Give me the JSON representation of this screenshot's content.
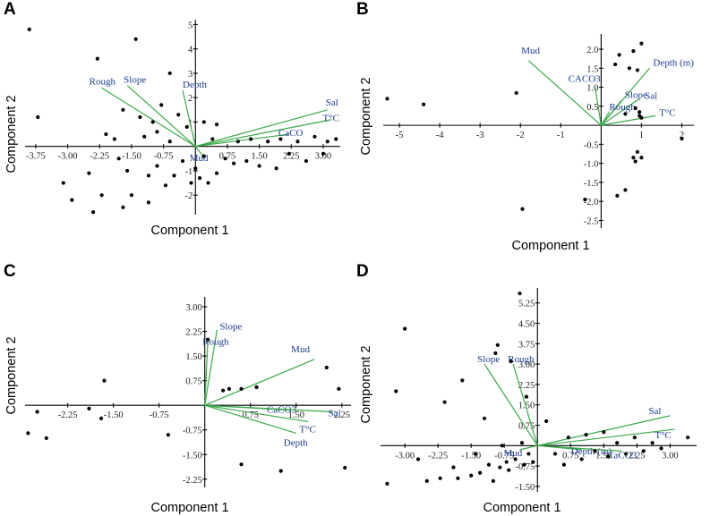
{
  "chart_data": [
    {
      "type": "scatter",
      "panel": "A",
      "xlabel": "Component 1",
      "ylabel": "Component 2",
      "xticks": [
        "-3.75",
        "-3.00",
        "-2.25",
        "-1.50",
        "-0.75",
        "0.75",
        "1.50",
        "2.25",
        "3.00"
      ],
      "yticks": [
        "5",
        "4",
        "3",
        "2",
        "1",
        "-1",
        "-2"
      ],
      "xlim": [
        -4.0,
        3.4
      ],
      "ylim": [
        -2.8,
        5.2
      ],
      "vectors": [
        {
          "label": "Rough",
          "x": -2.2,
          "y": 2.4
        },
        {
          "label": "Slope",
          "x": -1.6,
          "y": 2.5
        },
        {
          "label": "Depth",
          "x": -0.3,
          "y": 2.3
        },
        {
          "label": "Sal",
          "x": 3.1,
          "y": 1.5
        },
        {
          "label": "T°C",
          "x": 3.2,
          "y": 1.1
        },
        {
          "label": "CaCO",
          "x": 2.2,
          "y": 0.5
        },
        {
          "label": "Mud",
          "x": 0.2,
          "y": -0.45
        }
      ],
      "points": [
        [
          -3.9,
          4.8
        ],
        [
          -3.7,
          1.2
        ],
        [
          -3.1,
          -1.5
        ],
        [
          -2.9,
          -2.2
        ],
        [
          -2.5,
          -1.1
        ],
        [
          -2.4,
          -2.7
        ],
        [
          -2.3,
          3.6
        ],
        [
          -2.2,
          -2.0
        ],
        [
          -2.1,
          0.5
        ],
        [
          -1.9,
          0.3
        ],
        [
          -1.8,
          -0.5
        ],
        [
          -1.7,
          -2.5
        ],
        [
          -1.7,
          1.5
        ],
        [
          -1.6,
          -1.0
        ],
        [
          -1.5,
          -2.0
        ],
        [
          -1.4,
          4.4
        ],
        [
          -1.3,
          1.2
        ],
        [
          -1.2,
          0.4
        ],
        [
          -1.1,
          -1.2
        ],
        [
          -1.1,
          -2.3
        ],
        [
          -1.0,
          1.0
        ],
        [
          -0.9,
          0.6
        ],
        [
          -0.9,
          -0.8
        ],
        [
          -0.8,
          1.7
        ],
        [
          -0.7,
          -1.6
        ],
        [
          -0.6,
          3.0
        ],
        [
          -0.6,
          0.2
        ],
        [
          -0.5,
          -1.2
        ],
        [
          -0.4,
          1.3
        ],
        [
          -0.3,
          -0.6
        ],
        [
          -0.2,
          0.8
        ],
        [
          -0.1,
          -1.5
        ],
        [
          0.0,
          -0.9
        ],
        [
          0.1,
          -1.3
        ],
        [
          0.2,
          1.0
        ],
        [
          0.2,
          -0.4
        ],
        [
          0.3,
          -1.5
        ],
        [
          0.4,
          0.3
        ],
        [
          0.5,
          -1.1
        ],
        [
          0.5,
          0.9
        ],
        [
          0.7,
          -0.5
        ],
        [
          0.9,
          -0.7
        ],
        [
          1.0,
          0.2
        ],
        [
          1.2,
          -0.6
        ],
        [
          1.3,
          0.3
        ],
        [
          1.5,
          -0.8
        ],
        [
          1.7,
          0.2
        ],
        [
          1.9,
          -0.9
        ],
        [
          2.0,
          0.3
        ],
        [
          2.2,
          -0.3
        ],
        [
          2.4,
          0.2
        ],
        [
          2.6,
          -0.6
        ],
        [
          2.8,
          0.4
        ],
        [
          3.0,
          -0.3
        ],
        [
          3.1,
          0.2
        ],
        [
          3.3,
          0.3
        ]
      ]
    },
    {
      "type": "scatter",
      "panel": "B",
      "xlabel": "Component 1",
      "ylabel": "Component 2",
      "xticks": [
        "-5",
        "-4",
        "-3",
        "-2",
        "-1",
        "1",
        "2"
      ],
      "yticks": [
        "2.0",
        "1.5",
        "1.0",
        "0.5",
        "-0.5",
        "-1.0",
        "-1.5",
        "-2.0",
        "-2.5"
      ],
      "xlim": [
        -5.4,
        2.3
      ],
      "ylim": [
        -2.7,
        2.4
      ],
      "vectors": [
        {
          "label": "Mud",
          "x": -1.8,
          "y": 1.7
        },
        {
          "label": "CACO3",
          "x": -0.15,
          "y": 1.0
        },
        {
          "label": "Depth (m)",
          "x": 1.2,
          "y": 1.5
        },
        {
          "label": "Slope",
          "x": 0.5,
          "y": 0.65
        },
        {
          "label": "Sal",
          "x": 0.95,
          "y": 0.7
        },
        {
          "label": "Rough",
          "x": 0.2,
          "y": 0.35
        },
        {
          "label": "T°C",
          "x": 1.35,
          "y": 0.25
        }
      ],
      "points": [
        [
          -5.3,
          0.7
        ],
        [
          -4.4,
          0.55
        ],
        [
          -2.1,
          0.85
        ],
        [
          -1.95,
          -2.2
        ],
        [
          0.6,
          -1.7
        ],
        [
          -0.4,
          -1.95
        ],
        [
          0.4,
          -1.85
        ],
        [
          0.45,
          1.85
        ],
        [
          0.7,
          1.5
        ],
        [
          0.8,
          1.95
        ],
        [
          0.9,
          1.45
        ],
        [
          1.0,
          2.15
        ],
        [
          0.35,
          1.6
        ],
        [
          0.85,
          0.45
        ],
        [
          0.95,
          0.35
        ],
        [
          0.95,
          0.25
        ],
        [
          1.0,
          0.2
        ],
        [
          0.6,
          0.3
        ],
        [
          0.8,
          -0.85
        ],
        [
          0.85,
          -0.95
        ],
        [
          0.9,
          -0.7
        ],
        [
          1.0,
          -0.85
        ],
        [
          2.0,
          -0.35
        ]
      ]
    },
    {
      "type": "scatter",
      "panel": "C",
      "xlabel": "Component 1",
      "ylabel": "Component 2",
      "xticks": [
        "-2.25",
        "-1.50",
        "-0.75",
        "0.75",
        "1.50",
        "2.25"
      ],
      "yticks": [
        "3.00",
        "2.25",
        "1.50",
        "0.75",
        "-0.75",
        "-1.50",
        "-2.25"
      ],
      "xlim": [
        -2.95,
        2.4
      ],
      "ylim": [
        -2.5,
        3.3
      ],
      "vectors": [
        {
          "label": "Slope",
          "x": 0.2,
          "y": 2.3
        },
        {
          "label": "Rough",
          "x": 0.05,
          "y": 1.95
        },
        {
          "label": "Mud",
          "x": 1.8,
          "y": 1.4
        },
        {
          "label": "CaCO3",
          "x": 1.4,
          "y": -0.15
        },
        {
          "label": "Sal",
          "x": 2.1,
          "y": -0.2
        },
        {
          "label": "T°C",
          "x": 1.7,
          "y": -0.5
        },
        {
          "label": "Depth",
          "x": 1.5,
          "y": -0.85
        }
      ],
      "points": [
        [
          -2.9,
          -0.85
        ],
        [
          -2.75,
          -0.2
        ],
        [
          -2.6,
          -1.0
        ],
        [
          -1.9,
          -0.1
        ],
        [
          -1.65,
          0.75
        ],
        [
          -1.7,
          -0.4
        ],
        [
          -0.6,
          -0.9
        ],
        [
          0.05,
          2.0
        ],
        [
          0.3,
          0.45
        ],
        [
          0.4,
          0.5
        ],
        [
          0.6,
          0.5
        ],
        [
          0.6,
          -1.8
        ],
        [
          0.85,
          0.55
        ],
        [
          1.25,
          -2.0
        ],
        [
          2.0,
          1.15
        ],
        [
          2.2,
          0.5
        ],
        [
          2.3,
          -1.9
        ]
      ]
    },
    {
      "type": "scatter",
      "panel": "D",
      "xlabel": "Component 1",
      "ylabel": "Component 2",
      "xticks": [
        "-3.00",
        "-2.25",
        "-1.50",
        "-0.75",
        "0.75",
        "1.50",
        "2.25",
        "3.00"
      ],
      "yticks": [
        "5.25",
        "4.50",
        "3.75",
        "3.00",
        "2.25",
        "1.50",
        "0.75",
        "-0.75",
        "-1.50"
      ],
      "xlim": [
        -3.55,
        3.6
      ],
      "ylim": [
        -1.7,
        5.8
      ],
      "vectors": [
        {
          "label": "Slope",
          "x": -1.2,
          "y": 3.0
        },
        {
          "label": "Rough",
          "x": -0.55,
          "y": 3.0
        },
        {
          "label": "Sal",
          "x": 3.0,
          "y": 1.1
        },
        {
          "label": "T°C",
          "x": 3.1,
          "y": 0.6
        },
        {
          "label": "Depth (m)",
          "x": 1.0,
          "y": -0.15
        },
        {
          "label": "CaCO3",
          "x": 1.9,
          "y": -0.2
        },
        {
          "label": "Mud",
          "x": -0.4,
          "y": -0.15
        }
      ],
      "points": [
        [
          -3.4,
          -1.4
        ],
        [
          -3.2,
          2.0
        ],
        [
          -3.0,
          4.3
        ],
        [
          -2.7,
          -0.5
        ],
        [
          -2.5,
          -1.3
        ],
        [
          -2.2,
          -1.2
        ],
        [
          -2.1,
          1.6
        ],
        [
          -1.9,
          -0.8
        ],
        [
          -1.8,
          -1.2
        ],
        [
          -1.7,
          2.4
        ],
        [
          -1.5,
          -1.1
        ],
        [
          -1.4,
          -0.3
        ],
        [
          -1.3,
          -1.0
        ],
        [
          -1.2,
          1.0
        ],
        [
          -1.1,
          -0.7
        ],
        [
          -1.0,
          -1.3
        ],
        [
          -0.95,
          3.4
        ],
        [
          -0.9,
          3.7
        ],
        [
          -0.85,
          -0.8
        ],
        [
          -0.8,
          0.0
        ],
        [
          -0.7,
          -0.6
        ],
        [
          -0.65,
          -0.9
        ],
        [
          -0.6,
          3.1
        ],
        [
          -0.5,
          -0.5
        ],
        [
          -0.4,
          5.6
        ],
        [
          -0.35,
          0.1
        ],
        [
          -0.3,
          -0.7
        ],
        [
          -0.25,
          1.8
        ],
        [
          -0.2,
          -0.3
        ],
        [
          -0.1,
          -0.6
        ],
        [
          0.2,
          0.9
        ],
        [
          0.4,
          -0.3
        ],
        [
          0.6,
          -0.7
        ],
        [
          0.7,
          0.3
        ],
        [
          1.0,
          -0.5
        ],
        [
          1.1,
          0.4
        ],
        [
          1.3,
          -0.2
        ],
        [
          1.5,
          0.5
        ],
        [
          1.6,
          -0.4
        ],
        [
          1.8,
          0.1
        ],
        [
          2.0,
          -0.3
        ],
        [
          2.2,
          0.3
        ],
        [
          2.4,
          -0.2
        ],
        [
          2.6,
          0.1
        ],
        [
          2.8,
          -0.1
        ],
        [
          3.4,
          0.3
        ]
      ]
    }
  ]
}
